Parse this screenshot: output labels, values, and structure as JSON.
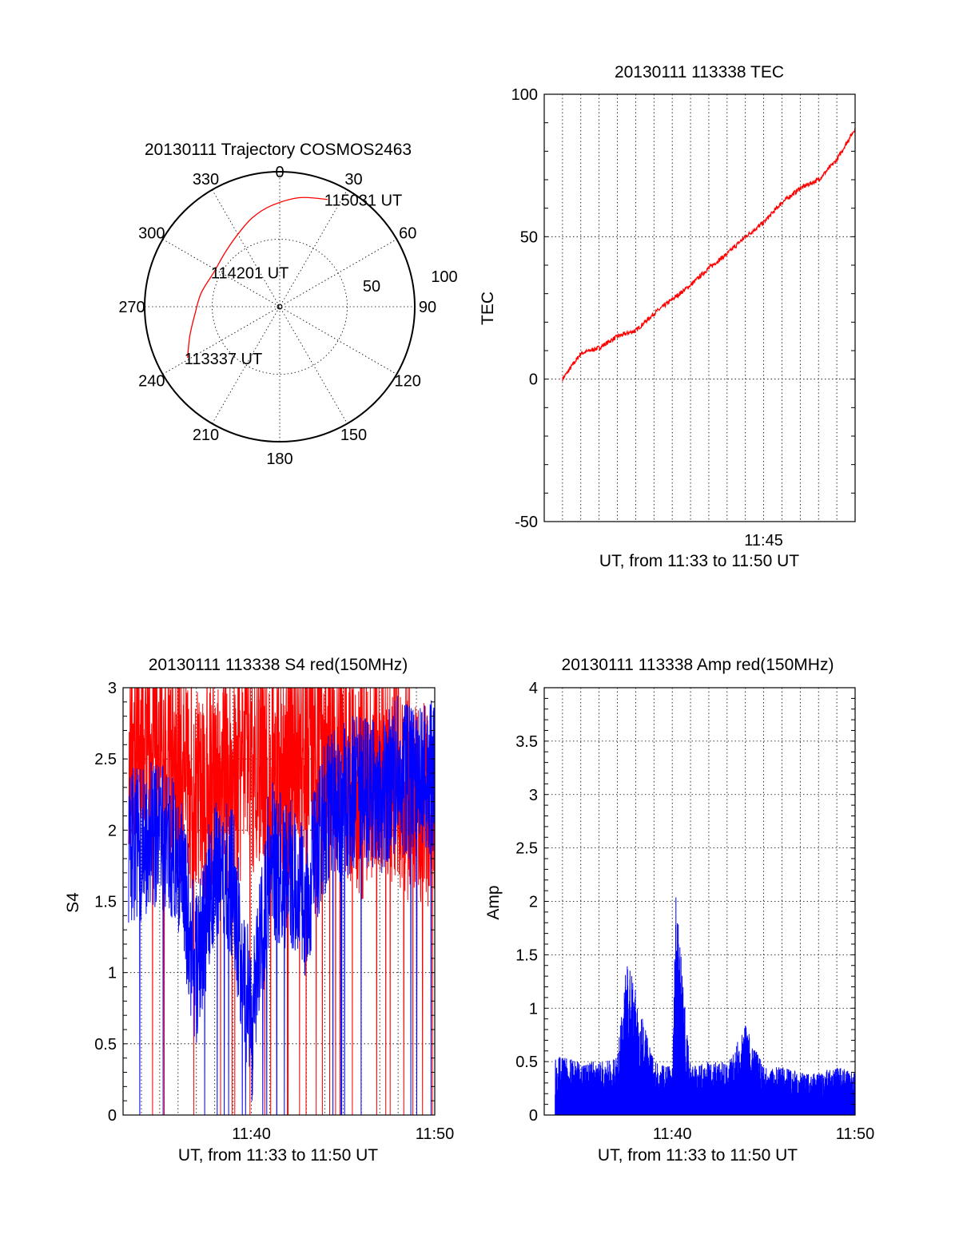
{
  "chart_data": [
    {
      "id": "trajectory",
      "type": "polar",
      "title": "20130111 Trajectory COSMOS2463",
      "azimuth_labels": [
        "0",
        "30",
        "60",
        "90",
        "120",
        "150",
        "180",
        "210",
        "240",
        "270",
        "300",
        "330"
      ],
      "ring_labels": [
        "50",
        "100"
      ],
      "r_range": [
        0,
        100
      ],
      "series": [
        {
          "color": "#ff0000",
          "points": [
            {
              "az": 241,
              "r": 78
            },
            {
              "az": 252,
              "r": 70
            },
            {
              "az": 265,
              "r": 63
            },
            {
              "az": 280,
              "r": 59
            },
            {
              "az": 298,
              "r": 55
            },
            {
              "az": 315,
              "r": 57
            },
            {
              "az": 330,
              "r": 62
            },
            {
              "az": 343,
              "r": 69
            },
            {
              "az": 355,
              "r": 75
            },
            {
              "az": 10,
              "r": 82
            },
            {
              "az": 24,
              "r": 87
            }
          ]
        }
      ],
      "annotations": [
        {
          "text": "115031 UT",
          "az": 24,
          "r": 87
        },
        {
          "text": "114201 UT",
          "az": 298,
          "r": 55
        },
        {
          "text": "113337 UT",
          "az": 241,
          "r": 78
        }
      ]
    },
    {
      "id": "tec",
      "type": "line",
      "title": "20130111 113338 TEC",
      "xlabel": "UT, from 11:33 to 11:50 UT",
      "ylabel": "TEC",
      "xlim": [
        "11:33",
        "11:50"
      ],
      "ylim": [
        -50,
        100
      ],
      "xticks": [
        "11:45"
      ],
      "yticks": [
        "-50",
        "0",
        "50",
        "100"
      ],
      "series": [
        {
          "color": "#ff0000",
          "x": [
            "11:34",
            "11:35",
            "11:36",
            "11:37",
            "11:38",
            "11:39",
            "11:40",
            "11:41",
            "11:42",
            "11:43",
            "11:44",
            "11:45",
            "11:46",
            "11:47",
            "11:48",
            "11:49",
            "11:50"
          ],
          "y": [
            0,
            9,
            11,
            15,
            17,
            23,
            28,
            33,
            39,
            44,
            50,
            55,
            62,
            67,
            70,
            77,
            88
          ]
        }
      ]
    },
    {
      "id": "s4",
      "type": "line",
      "title": "20130111 113338 S4 red(150MHz)",
      "xlabel": "UT, from 11:33 to 11:50 UT",
      "ylabel": "S4",
      "xlim": [
        "11:33",
        "11:50"
      ],
      "ylim": [
        0,
        3
      ],
      "xticks": [
        "11:40",
        "11:50"
      ],
      "yticks": [
        "0",
        "0.5",
        "1",
        "1.5",
        "2",
        "2.5",
        "3"
      ],
      "series": [
        {
          "color": "#ff0000",
          "x": [
            "11:34",
            "11:35",
            "11:36",
            "11:37",
            "11:38",
            "11:39",
            "11:40",
            "11:41",
            "11:42",
            "11:43",
            "11:44",
            "11:45",
            "11:46",
            "11:47",
            "11:48",
            "11:49",
            "11:50"
          ],
          "y": [
            2.7,
            2.6,
            2.4,
            2.3,
            2.3,
            2.4,
            2.5,
            2.5,
            2.4,
            2.6,
            2.6,
            2.5,
            2.3,
            2.5,
            2.4,
            2.2,
            2.3
          ]
        },
        {
          "color": "#0000ff",
          "x": [
            "11:34",
            "11:35",
            "11:36",
            "11:37",
            "11:38",
            "11:39",
            "11:40",
            "11:41",
            "11:42",
            "11:43",
            "11:44",
            "11:45",
            "11:46",
            "11:47",
            "11:48",
            "11:49",
            "11:50"
          ],
          "y": [
            1.9,
            2.0,
            1.8,
            1.0,
            1.8,
            1.6,
            0.6,
            1.8,
            1.7,
            1.5,
            2.1,
            2.2,
            2.3,
            2.2,
            2.4,
            2.3,
            2.4
          ]
        }
      ]
    },
    {
      "id": "amp",
      "type": "line",
      "title": "20130111 113338 Amp red(150MHz)",
      "xlabel": "UT, from 11:33 to 11:50 UT",
      "ylabel": "Amp",
      "xlim": [
        "11:33",
        "11:50"
      ],
      "ylim": [
        0,
        4
      ],
      "xticks": [
        "11:40",
        "11:50"
      ],
      "yticks": [
        "0",
        "0.5",
        "1",
        "1.5",
        "2",
        "2.5",
        "3",
        "3.5",
        "4"
      ],
      "series": [
        {
          "color": "#0000ff",
          "x": [
            "11:34",
            "11:35",
            "11:36",
            "11:37",
            "11:37.5",
            "11:38",
            "11:39",
            "11:40",
            "11:40.2",
            "11:41",
            "11:42",
            "11:43",
            "11:44",
            "11:45",
            "11:46",
            "11:47",
            "11:48",
            "11:49",
            "11:50"
          ],
          "y": [
            0.55,
            0.5,
            0.5,
            0.55,
            1.45,
            1.2,
            0.5,
            0.45,
            2.05,
            0.45,
            0.5,
            0.5,
            0.85,
            0.45,
            0.45,
            0.4,
            0.4,
            0.45,
            0.4
          ]
        }
      ]
    }
  ]
}
